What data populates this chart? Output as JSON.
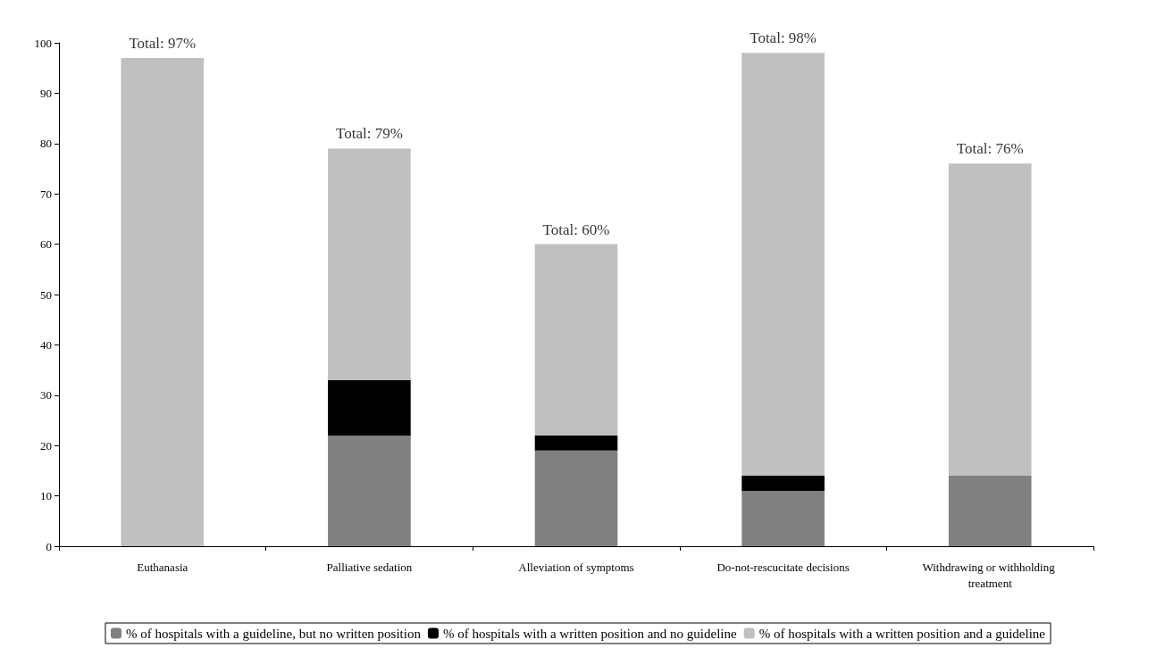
{
  "chart_data": {
    "type": "bar",
    "stacked": true,
    "categories": [
      "Euthanasia",
      "Palliative sedation",
      "Alleviation of symptoms",
      "Do-not-rescucitate decisions",
      "Withdrawing or withholding treatment"
    ],
    "series": [
      {
        "name": "% of hospitals with a guideline, but no written position",
        "color": "#808080",
        "values": [
          0,
          22,
          19,
          11,
          14
        ]
      },
      {
        "name": "% of hospitals with a written position and no guideline",
        "color": "#000000",
        "values": [
          0,
          11,
          3,
          3,
          0
        ]
      },
      {
        "name": "% of hospitals with a written position and a guideline",
        "color": "#c0c0c0",
        "values": [
          97,
          46,
          38,
          84,
          62
        ]
      }
    ],
    "totals": [
      "Total: 97%",
      "Total: 79%",
      "Total: 60%",
      "Total: 98%",
      "Total: 76%"
    ],
    "ylim": [
      0,
      100
    ],
    "yticks": [
      0,
      10,
      20,
      30,
      40,
      50,
      60,
      70,
      80,
      90,
      100
    ],
    "grid": false,
    "legend": "bottom"
  }
}
